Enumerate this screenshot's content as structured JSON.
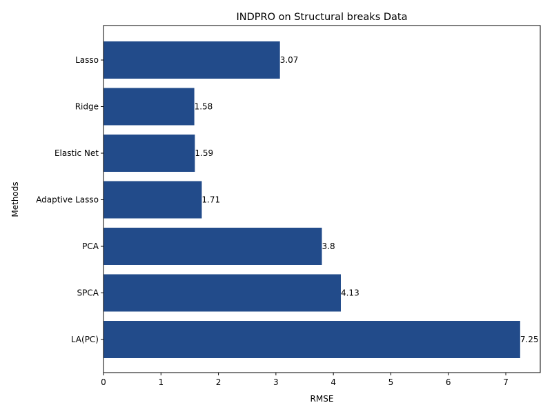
{
  "chart_data": {
    "type": "bar",
    "orientation": "horizontal",
    "title": "INDPRO on Structural breaks Data",
    "xlabel": "RMSE",
    "ylabel": "Methods",
    "categories": [
      "Lasso",
      "Ridge",
      "Elastic Net",
      "Adaptive Lasso",
      "PCA",
      "SPCA",
      "LA(PC)"
    ],
    "values": [
      3.07,
      1.58,
      1.59,
      1.71,
      3.8,
      4.13,
      7.25
    ],
    "data_labels": [
      "3.07",
      "1.58",
      "1.59",
      "1.71",
      "3.8",
      "4.13",
      "7.25"
    ],
    "xlim": [
      0,
      7.6
    ],
    "xticks": [
      0,
      1,
      2,
      3,
      4,
      5,
      6,
      7
    ],
    "xtick_labels": [
      "0",
      "1",
      "2",
      "3",
      "4",
      "5",
      "6",
      "7"
    ],
    "bar_color": "#224b8a",
    "grid": false,
    "legend": "none"
  }
}
